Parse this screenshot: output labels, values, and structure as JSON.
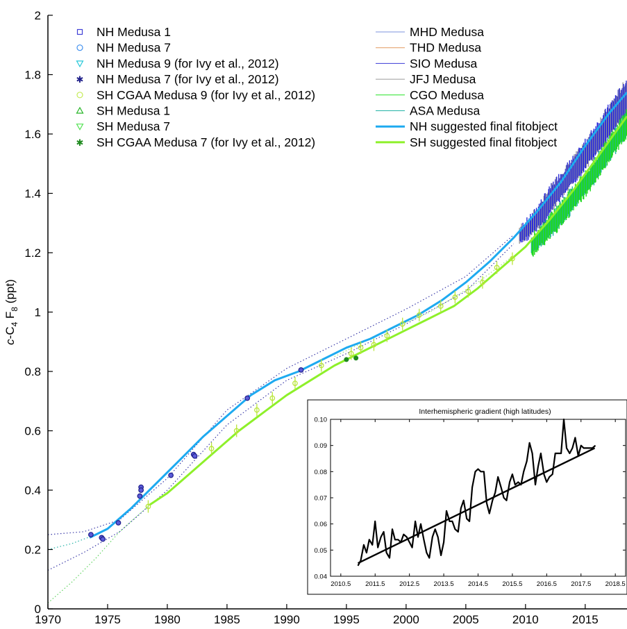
{
  "chart_data": [
    {
      "type": "line",
      "ylabel_parts": [
        "c",
        "-C",
        "4",
        " F",
        "8",
        " (ppt)"
      ],
      "xlim": [
        1970,
        2018.5
      ],
      "ylim": [
        0,
        2
      ],
      "xticks": [
        1970,
        1975,
        1980,
        1985,
        1990,
        1995,
        2000,
        2005,
        2010,
        2015
      ],
      "yticks": [
        0,
        0.2,
        0.4,
        0.6,
        0.8,
        1,
        1.2,
        1.4,
        1.6,
        1.8,
        2
      ],
      "ytick_labels": [
        "0",
        "0.2",
        "0.4",
        "0.6",
        "0.8",
        "1",
        "1.2",
        "1.4",
        "1.6",
        "1.8",
        "2"
      ],
      "legend_left": [
        {
          "label": "NH Medusa 1",
          "marker": "square",
          "color": "#3f3fd6"
        },
        {
          "label": "NH Medusa 7",
          "marker": "circle",
          "color": "#3f8fef"
        },
        {
          "label": "NH Medusa 9 (for Ivy et al., 2012)",
          "marker": "tri-down",
          "color": "#25c8d8"
        },
        {
          "label": "NH Medusa 7 (for Ivy et al., 2012)",
          "marker": "star",
          "color": "#20208a"
        },
        {
          "label": "SH CGAA Medusa 9 (for Ivy et al., 2012)",
          "marker": "circle",
          "color": "#c4ec55"
        },
        {
          "label": "SH Medusa 1",
          "marker": "tri-up",
          "color": "#25b525"
        },
        {
          "label": "SH Medusa 7",
          "marker": "tri-down",
          "color": "#54e354"
        },
        {
          "label": "SH CGAA Medusa 7 (for Ivy et al., 2012)",
          "marker": "star",
          "color": "#1e8a1e"
        }
      ],
      "legend_right": [
        {
          "label": "MHD Medusa",
          "color": "#7b93dc",
          "width": 1
        },
        {
          "label": "THD Medusa",
          "color": "#e2995e",
          "width": 1
        },
        {
          "label": "SIO Medusa",
          "color": "#3a3ad6",
          "width": 1
        },
        {
          "label": "JFJ Medusa",
          "color": "#9a9a9a",
          "width": 1
        },
        {
          "label": "CGO Medusa",
          "color": "#26e326",
          "width": 1
        },
        {
          "label": "ASA Medusa",
          "color": "#22b2a6",
          "width": 1
        },
        {
          "label": "NH suggested final fitobject",
          "color": "#1eaaf0",
          "width": 3
        },
        {
          "label": "SH suggested final fitobject",
          "color": "#8ef02a",
          "width": 3
        }
      ],
      "series": [
        {
          "name": "NH suggested final fitobject",
          "color": "#1eaaf0",
          "x": [
            1973.5,
            1975,
            1977,
            1979,
            1981,
            1983,
            1985,
            1987,
            1989,
            1991,
            1993,
            1995,
            1997,
            1999,
            2001,
            2003,
            2005,
            2007,
            2009,
            2011,
            2013,
            2015,
            2017,
            2018.5
          ],
          "y": [
            0.24,
            0.27,
            0.34,
            0.42,
            0.5,
            0.58,
            0.65,
            0.72,
            0.77,
            0.8,
            0.84,
            0.88,
            0.91,
            0.95,
            0.99,
            1.04,
            1.1,
            1.17,
            1.25,
            1.34,
            1.44,
            1.56,
            1.67,
            1.74
          ]
        },
        {
          "name": "SH suggested final fitobject",
          "color": "#8ef02a",
          "x": [
            1978.5,
            1980,
            1982,
            1984,
            1986,
            1988,
            1990,
            1992,
            1994,
            1996,
            1998,
            2000,
            2002,
            2004,
            2006,
            2008,
            2010,
            2012,
            2014,
            2016,
            2018.5
          ],
          "y": [
            0.35,
            0.39,
            0.46,
            0.53,
            0.6,
            0.66,
            0.72,
            0.77,
            0.82,
            0.86,
            0.9,
            0.94,
            0.98,
            1.02,
            1.08,
            1.15,
            1.22,
            1.31,
            1.41,
            1.52,
            1.66
          ]
        }
      ],
      "nh_dotted_upper": {
        "x": [
          1970,
          1973,
          1976,
          1980,
          1985,
          1990,
          1995,
          2000,
          2005,
          2009
        ],
        "y": [
          0.25,
          0.26,
          0.3,
          0.44,
          0.67,
          0.81,
          0.91,
          1.01,
          1.12,
          1.26
        ]
      },
      "nh_dotted_lower": {
        "x": [
          1970,
          1973,
          1976,
          1980,
          1985,
          1990,
          1995,
          2000,
          2005,
          2009
        ],
        "y": [
          0.13,
          0.19,
          0.26,
          0.4,
          0.62,
          0.77,
          0.86,
          0.96,
          1.07,
          1.23
        ]
      },
      "nh_dotted_top": {
        "x": [
          1970,
          1972,
          1974
        ],
        "y": [
          0.2,
          0.22,
          0.25
        ]
      },
      "sh_dotted": {
        "x": [
          1970,
          1972,
          1974,
          1976,
          1978.5
        ],
        "y": [
          0.02,
          0.09,
          0.17,
          0.26,
          0.35
        ]
      },
      "sh_dotted_upper": {
        "x": [
          1994,
          1998,
          2002,
          2006,
          2009
        ],
        "y": [
          0.85,
          0.93,
          1.0,
          1.1,
          1.19
        ]
      },
      "nh_flask_points": [
        {
          "x": 1973.6,
          "y": 0.25
        },
        {
          "x": 1974.5,
          "y": 0.24
        },
        {
          "x": 1974.6,
          "y": 0.235
        },
        {
          "x": 1975.9,
          "y": 0.29
        },
        {
          "x": 1977.8,
          "y": 0.41
        },
        {
          "x": 1977.8,
          "y": 0.4
        },
        {
          "x": 1977.7,
          "y": 0.38
        },
        {
          "x": 1980.3,
          "y": 0.45
        },
        {
          "x": 1982.2,
          "y": 0.52
        },
        {
          "x": 1982.3,
          "y": 0.515
        },
        {
          "x": 1986.7,
          "y": 0.71
        },
        {
          "x": 1991.2,
          "y": 0.805
        }
      ],
      "sh_flask_points": [
        {
          "x": 1978.4,
          "y": 0.345
        },
        {
          "x": 1983.7,
          "y": 0.54
        },
        {
          "x": 1985.8,
          "y": 0.6
        },
        {
          "x": 1987.5,
          "y": 0.67
        },
        {
          "x": 1988.8,
          "y": 0.71
        },
        {
          "x": 1990.7,
          "y": 0.76
        },
        {
          "x": 1992.9,
          "y": 0.82
        },
        {
          "x": 1995.4,
          "y": 0.86
        },
        {
          "x": 1996.2,
          "y": 0.88
        },
        {
          "x": 1997.3,
          "y": 0.89
        },
        {
          "x": 1998.4,
          "y": 0.92
        },
        {
          "x": 1999.7,
          "y": 0.96
        },
        {
          "x": 2001.1,
          "y": 0.99
        },
        {
          "x": 2002.9,
          "y": 1.02
        },
        {
          "x": 2004.1,
          "y": 1.05
        },
        {
          "x": 2005.2,
          "y": 1.07
        },
        {
          "x": 2006.4,
          "y": 1.1
        },
        {
          "x": 2007.6,
          "y": 1.15
        },
        {
          "x": 2008.9,
          "y": 1.18
        }
      ],
      "sh_cgaa7_points": [
        {
          "x": 1995.0,
          "y": 0.84
        },
        {
          "x": 1995.8,
          "y": 0.845
        }
      ],
      "station_bands": [
        {
          "name": "NH",
          "color": "#2222dd",
          "x": [
            2009.5,
            2010.5,
            2011.5,
            2012.5,
            2013.5,
            2014.5,
            2015.5,
            2016.5,
            2017.5,
            2018.5
          ],
          "lo": [
            1.24,
            1.27,
            1.31,
            1.37,
            1.42,
            1.47,
            1.52,
            1.57,
            1.63,
            1.68
          ],
          "hi": [
            1.27,
            1.31,
            1.37,
            1.43,
            1.48,
            1.53,
            1.59,
            1.65,
            1.71,
            1.77
          ]
        },
        {
          "name": "SH",
          "color": "#22dd22",
          "x": [
            2010.5,
            2011.5,
            2012.5,
            2013.5,
            2014.5,
            2015.5,
            2016.5,
            2017.5,
            2018.5
          ],
          "lo": [
            1.2,
            1.24,
            1.28,
            1.33,
            1.38,
            1.43,
            1.49,
            1.55,
            1.6
          ],
          "hi": [
            1.24,
            1.28,
            1.33,
            1.38,
            1.43,
            1.48,
            1.54,
            1.6,
            1.67
          ]
        }
      ]
    },
    {
      "type": "line",
      "title": "Interhemispheric gradient (high latitudes)",
      "xlim": [
        2010.2,
        2018.8
      ],
      "ylim": [
        0.04,
        0.1
      ],
      "xticks": [
        2010.5,
        2011.5,
        2012.5,
        2013.5,
        2014.5,
        2015.5,
        2016.5,
        2017.5,
        2018.5
      ],
      "xtick_labels": [
        "2010.5",
        "2011.5",
        "2012.5",
        "2013.5",
        "2014.5",
        "2015.5",
        "2016.5",
        "2017.5",
        "2018.5"
      ],
      "yticks": [
        0.04,
        0.05,
        0.06,
        0.07,
        0.08,
        0.09,
        0.1
      ],
      "ytick_labels": [
        "0.04",
        "0.05",
        "0.06",
        "0.07",
        "0.08",
        "0.09",
        "0.10"
      ],
      "series": [
        {
          "x": [
            2011.0,
            2011.08,
            2011.17,
            2011.25,
            2011.33,
            2011.42,
            2011.5,
            2011.58,
            2011.67,
            2011.75,
            2011.83,
            2011.92,
            2012.0,
            2012.08,
            2012.17,
            2012.25,
            2012.33,
            2012.42,
            2012.5,
            2012.58,
            2012.67,
            2012.75,
            2012.83,
            2012.92,
            2013.0,
            2013.08,
            2013.17,
            2013.25,
            2013.33,
            2013.42,
            2013.5,
            2013.58,
            2013.67,
            2013.75,
            2013.83,
            2013.92,
            2014.0,
            2014.08,
            2014.17,
            2014.25,
            2014.33,
            2014.42,
            2014.5,
            2014.58,
            2014.67,
            2014.75,
            2014.83,
            2014.92,
            2015.0,
            2015.08,
            2015.17,
            2015.25,
            2015.33,
            2015.42,
            2015.5,
            2015.58,
            2015.67,
            2015.75,
            2015.83,
            2015.92,
            2016.0,
            2016.08,
            2016.17,
            2016.25,
            2016.33,
            2016.42,
            2016.5,
            2016.58,
            2016.67,
            2016.75,
            2016.83,
            2016.92,
            2017.0,
            2017.08,
            2017.17,
            2017.25,
            2017.33,
            2017.42,
            2017.5,
            2017.58,
            2017.67,
            2017.75,
            2017.83,
            2017.92
          ],
          "y": [
            0.044,
            0.046,
            0.052,
            0.049,
            0.054,
            0.052,
            0.061,
            0.051,
            0.055,
            0.057,
            0.049,
            0.047,
            0.058,
            0.054,
            0.054,
            0.053,
            0.056,
            0.055,
            0.053,
            0.051,
            0.061,
            0.055,
            0.06,
            0.054,
            0.049,
            0.047,
            0.055,
            0.058,
            0.055,
            0.048,
            0.053,
            0.065,
            0.061,
            0.061,
            0.058,
            0.057,
            0.066,
            0.069,
            0.062,
            0.061,
            0.074,
            0.08,
            0.081,
            0.08,
            0.08,
            0.068,
            0.064,
            0.069,
            0.072,
            0.078,
            0.074,
            0.07,
            0.069,
            0.076,
            0.079,
            0.075,
            0.076,
            0.075,
            0.08,
            0.084,
            0.091,
            0.087,
            0.075,
            0.082,
            0.087,
            0.079,
            0.076,
            0.078,
            0.079,
            0.087,
            0.087,
            0.087,
            0.1,
            0.089,
            0.087,
            0.089,
            0.093,
            0.086,
            0.09,
            0.089,
            0.089,
            0.089,
            0.089,
            0.09
          ]
        },
        {
          "x": [
            2011.0,
            2017.9
          ],
          "y": [
            0.045,
            0.089
          ]
        }
      ]
    }
  ]
}
